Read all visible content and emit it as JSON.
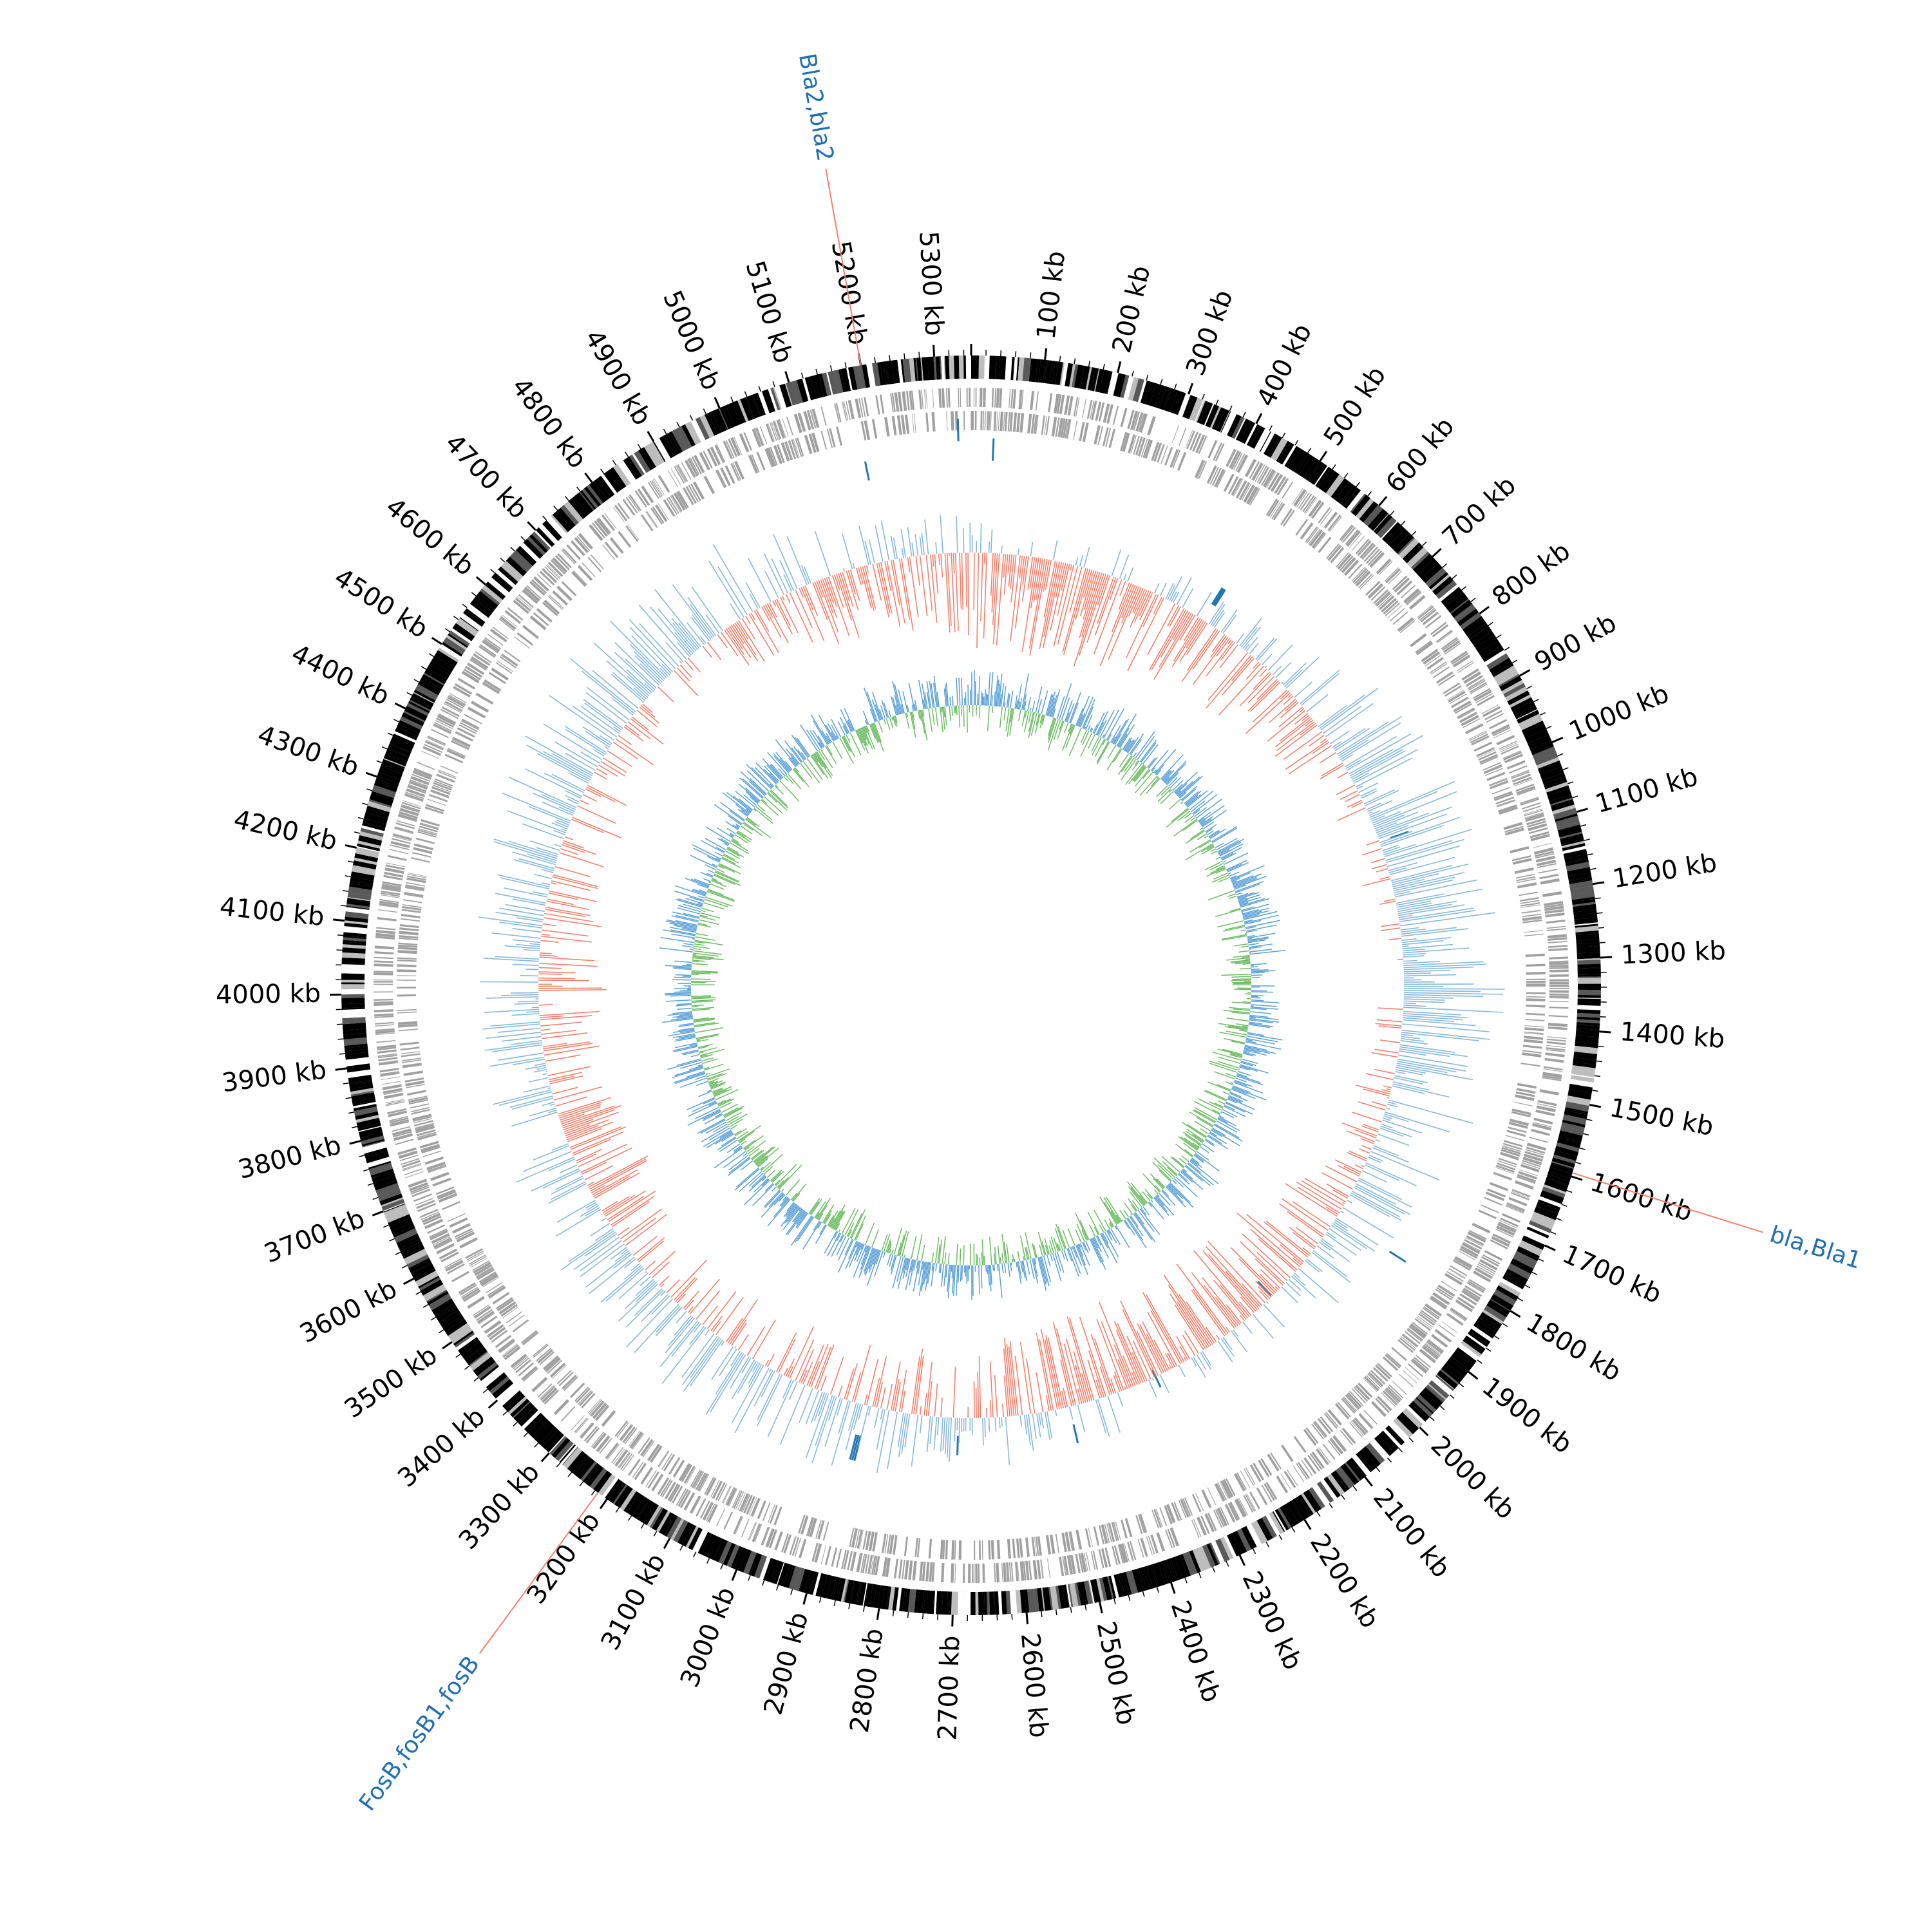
{
  "genome": {
    "length_kb": 5350,
    "unit": "kb"
  },
  "ticks": {
    "major_step_kb": 100,
    "minor_step_kb": 20,
    "labels": [
      "100 kb",
      "200 kb",
      "300 kb",
      "400 kb",
      "500 kb",
      "600 kb",
      "700 kb",
      "800 kb",
      "900 kb",
      "1000 kb",
      "1100 kb",
      "1200 kb",
      "1300 kb",
      "1400 kb",
      "1500 kb",
      "1600 kb",
      "1700 kb",
      "1800 kb",
      "1900 kb",
      "2000 kb",
      "2100 kb",
      "2200 kb",
      "2300 kb",
      "2400 kb",
      "2500 kb",
      "2600 kb",
      "2700 kb",
      "2800 kb",
      "2900 kb",
      "3000 kb",
      "3100 kb",
      "3200 kb",
      "3300 kb",
      "3400 kb",
      "3500 kb",
      "3600 kb",
      "3700 kb",
      "3800 kb",
      "3900 kb",
      "4000 kb",
      "4100 kb",
      "4200 kb",
      "4300 kb",
      "4400 kb",
      "4500 kb",
      "4600 kb",
      "4700 kb",
      "4800 kb",
      "4900 kb",
      "5000 kb",
      "5100 kb",
      "5200 kb",
      "5300 kb"
    ]
  },
  "gene_annotations": [
    {
      "position_kb": 5200,
      "text": "Bla2,bla2"
    },
    {
      "position_kb": 1595,
      "text": "bla,Bla1"
    },
    {
      "position_kb": 3215,
      "text": "FosB,fosB1,fosB"
    }
  ],
  "colors": {
    "ideogram_black": "#000000",
    "ideogram_dark": "#595959",
    "ideogram_light": "#bdbdbd",
    "gene_tracks": "#a0a0a0",
    "rrna_ticks": "#1f77b4",
    "label_text": "#1f6fb5",
    "label_line": "#f4806b",
    "gc_skew_pos": "#f4806b",
    "gc_skew_neg": "#85b8dc",
    "gc_content_pos": "#5aa0d8",
    "gc_content_neg": "#6cbd62"
  }
}
